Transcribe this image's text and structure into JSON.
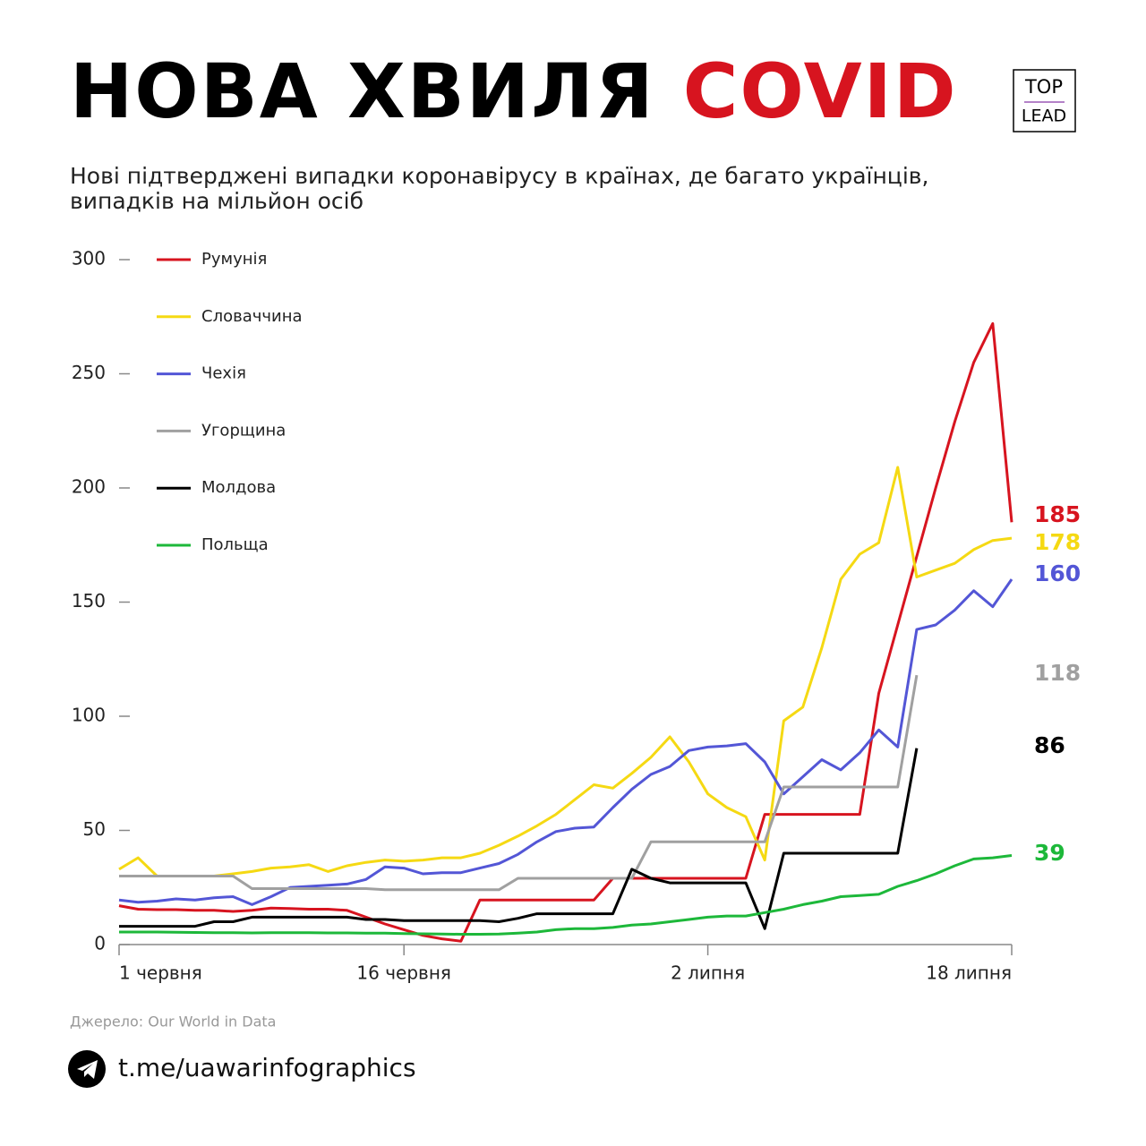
{
  "chart_data": {
    "type": "line",
    "title": "НОВА ХВИЛЯ",
    "title_highlight": "COVID",
    "logo": [
      "TOP",
      "LEAD"
    ],
    "subtitle": [
      "Нові підтверджені випадки коронавірусу в країнах, де багато українців,",
      "випадків на мільйон осіб"
    ],
    "source": "Джерело: Our World in Data",
    "link": "t.me/uawarinfographics",
    "categories": [
      "1 червня",
      null,
      null,
      null,
      null,
      null,
      null,
      null,
      null,
      null,
      null,
      null,
      null,
      null,
      null,
      "16 червня",
      null,
      null,
      null,
      null,
      null,
      null,
      null,
      null,
      null,
      null,
      null,
      null,
      null,
      null,
      null,
      "2 липня",
      null,
      null,
      null,
      null,
      null,
      null,
      null,
      null,
      null,
      null,
      null,
      null,
      null,
      null,
      null,
      "18 липня"
    ],
    "ylim": [
      0,
      300
    ],
    "yticks": [
      0,
      50,
      100,
      150,
      200,
      250,
      300
    ],
    "grid": false,
    "legend": "top-left",
    "series": [
      {
        "name": "Румунія",
        "color": "#d7141f",
        "values": [
          17,
          15.5,
          15.3,
          15.3,
          15,
          15,
          14.5,
          15,
          16,
          15.8,
          15.5,
          15.5,
          15,
          12,
          9,
          6.5,
          4,
          2.5,
          1.5,
          19.5,
          19.5,
          19.5,
          19.5,
          19.5,
          19.5,
          19.5,
          29,
          29,
          29,
          29,
          29,
          29,
          29,
          29,
          57,
          57,
          57,
          57,
          57,
          57,
          110,
          140,
          170,
          200,
          229,
          255,
          272,
          185
        ]
      },
      {
        "name": "Словаччина",
        "color": "#f5d913",
        "values": [
          33,
          38,
          30,
          30,
          30,
          30,
          31,
          32,
          33.5,
          34,
          35,
          32,
          34.5,
          36,
          37,
          36.5,
          37,
          38,
          38,
          40,
          43.5,
          47.5,
          52,
          57,
          63.5,
          70,
          68.5,
          75,
          82,
          91,
          80,
          66,
          60,
          56,
          37,
          98,
          104,
          130,
          160,
          171,
          176,
          209,
          161,
          164,
          167,
          173,
          177,
          178
        ]
      },
      {
        "name": "Чехія",
        "color": "#5356d6",
        "values": [
          19.5,
          18.5,
          19,
          20,
          19.5,
          20.5,
          21,
          17.5,
          21,
          25,
          25.5,
          26,
          26.5,
          28.5,
          34,
          33.5,
          31,
          31.5,
          31.5,
          33.5,
          35.5,
          39.5,
          45,
          49.5,
          51,
          51.5,
          60,
          68,
          74.5,
          78,
          85,
          86.5,
          87,
          88,
          80,
          66,
          73.5,
          81,
          76.5,
          84,
          94,
          86.5,
          138,
          140,
          146.5,
          155,
          148,
          160
        ]
      },
      {
        "name": "Угорщина",
        "color": "#a0a0a0",
        "values": [
          30,
          30,
          30,
          30,
          30,
          30,
          30,
          24.5,
          24.5,
          24.5,
          24.5,
          24.5,
          24.5,
          24.5,
          24,
          24,
          24,
          24,
          24,
          24,
          24,
          29,
          29,
          29,
          29,
          29,
          29,
          29,
          45,
          45,
          45,
          45,
          45,
          45,
          45,
          69,
          69,
          69,
          69,
          69,
          69,
          69,
          118,
          null,
          null,
          null,
          null,
          null
        ]
      },
      {
        "name": "Молдова",
        "color": "#000000",
        "values": [
          8,
          8,
          8,
          8,
          8,
          10,
          10,
          12,
          12,
          12,
          12,
          12,
          12,
          11,
          11,
          10.5,
          10.5,
          10.5,
          10.5,
          10.5,
          10,
          11.5,
          13.5,
          13.5,
          13.5,
          13.5,
          13.5,
          33,
          29,
          27,
          27,
          27,
          27,
          27,
          7,
          40,
          40,
          40,
          40,
          40,
          40,
          40,
          86,
          null,
          null,
          null,
          null,
          null
        ]
      },
      {
        "name": "Польща",
        "color": "#1db83a",
        "values": [
          5.5,
          5.5,
          5.5,
          5.4,
          5.3,
          5.2,
          5.2,
          5.1,
          5.2,
          5.2,
          5.2,
          5.1,
          5.1,
          5,
          5,
          4.8,
          4.7,
          4.6,
          4.5,
          4.5,
          4.6,
          5,
          5.5,
          6.5,
          7,
          7,
          7.5,
          8.5,
          9,
          10,
          11,
          12,
          12.5,
          12.5,
          14,
          15.5,
          17.5,
          19,
          21,
          21.5,
          22,
          25.5,
          28,
          31,
          34.5,
          37.5,
          38,
          39
        ]
      }
    ]
  }
}
